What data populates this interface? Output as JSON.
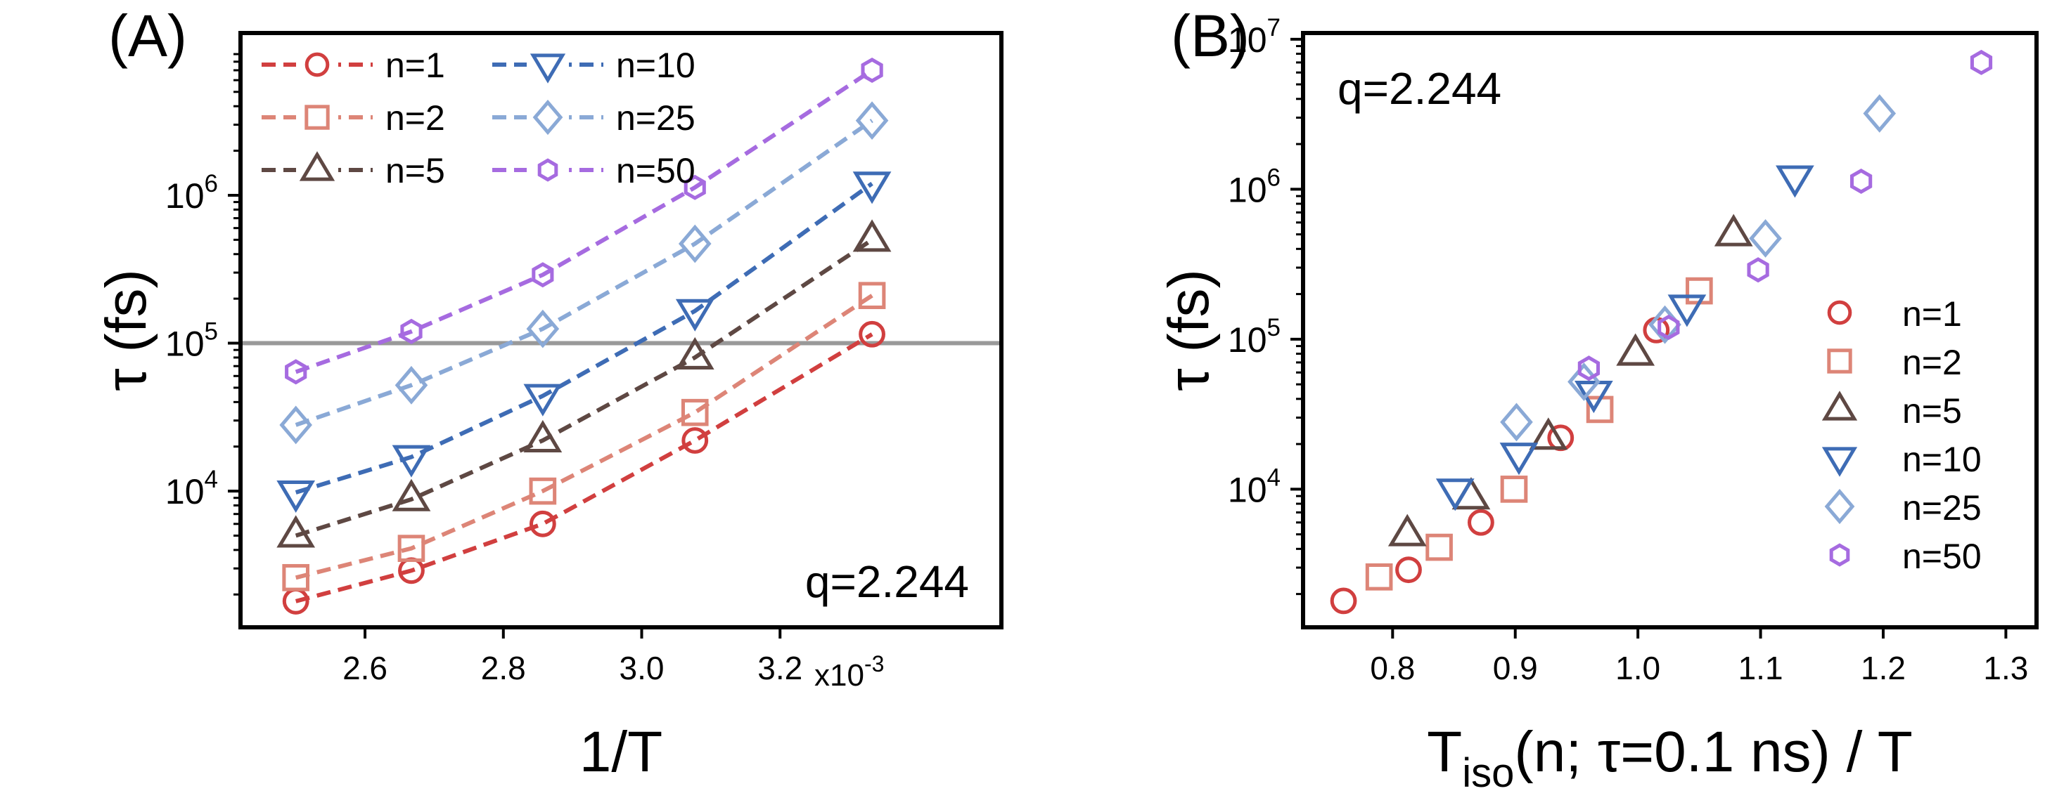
{
  "chart_data": [
    {
      "type": "line",
      "panel_label": "(A)",
      "annotation": "q=2.244",
      "xlabel": "1/T",
      "ylabel": "τ (fs)",
      "x_multiplier": "x10",
      "x_multiplier_exp": "-3",
      "yscale": "log",
      "xlim": [
        2.42,
        3.52
      ],
      "ylim": [
        1200,
        12500000.0
      ],
      "xticks": [
        {
          "value": 2.6,
          "label": "2.6"
        },
        {
          "value": 2.8,
          "label": "2.8"
        },
        {
          "value": 3.0,
          "label": "3.0"
        },
        {
          "value": 3.2,
          "label": "3.2"
        }
      ],
      "yticks": [
        {
          "value": 10000,
          "label": "10",
          "exp": "4"
        },
        {
          "value": 100000,
          "label": "10",
          "exp": "5"
        },
        {
          "value": 1000000,
          "label": "10",
          "exp": "6"
        }
      ],
      "hline": {
        "value": 100000,
        "color": "#999999"
      },
      "legend": {
        "placement": "top-left",
        "columns": 2
      },
      "series": [
        {
          "name": "n=1",
          "marker": "circle",
          "color": "#d13f3f",
          "x": [
            2.5,
            2.667,
            2.857,
            3.077,
            3.333
          ],
          "y": [
            1800,
            2900,
            6000,
            22000,
            115000
          ],
          "fit_y": [
            1800,
            2900,
            6000,
            22000,
            115000
          ]
        },
        {
          "name": "n=2",
          "marker": "square",
          "color": "#dd8577",
          "x": [
            2.5,
            2.667,
            2.857,
            3.077,
            3.333
          ],
          "y": [
            2600,
            4100,
            10000,
            34000,
            210000
          ],
          "fit_y": [
            2600,
            4100,
            10000,
            34000,
            210000
          ]
        },
        {
          "name": "n=5",
          "marker": "triangle-up",
          "color": "#5e4843",
          "x": [
            2.5,
            2.667,
            2.857,
            3.077,
            3.333
          ],
          "y": [
            5000,
            8800,
            22000,
            80000,
            500000
          ],
          "fit_y": [
            5000,
            8800,
            22000,
            80000,
            500000
          ]
        },
        {
          "name": "n=10",
          "marker": "triangle-down",
          "color": "#3e6cb5",
          "x": [
            2.5,
            2.667,
            2.857,
            3.077,
            3.333
          ],
          "y": [
            9800,
            17000,
            44000,
            165000,
            1200000
          ],
          "fit_y": [
            9800,
            17000,
            44000,
            165000,
            1200000
          ]
        },
        {
          "name": "n=25",
          "marker": "diamond",
          "color": "#8aa9d6",
          "x": [
            2.5,
            2.667,
            2.857,
            3.077,
            3.333
          ],
          "y": [
            28000,
            52000,
            125000,
            470000,
            3200000
          ],
          "fit_y": [
            28000,
            52000,
            125000,
            470000,
            3200000
          ]
        },
        {
          "name": "n=50",
          "marker": "hexagon",
          "color": "#a66be0",
          "x": [
            2.5,
            2.667,
            2.857,
            3.077,
            3.333
          ],
          "y": [
            64000,
            120000,
            290000,
            1130000,
            7000000
          ],
          "fit_y": [
            64000,
            120000,
            290000,
            1130000,
            7000000
          ]
        }
      ]
    },
    {
      "type": "scatter",
      "panel_label": "(B)",
      "annotation": "q=2.244",
      "xlabel_main": "T",
      "xlabel_sub": "iso",
      "xlabel_rest": "(n; τ=0.1 ns) / T",
      "ylabel": "τ (fs)",
      "yscale": "log",
      "xlim": [
        0.727,
        1.325
      ],
      "ylim": [
        1200,
        11000000.0
      ],
      "xticks": [
        {
          "value": 0.8,
          "label": "0.8"
        },
        {
          "value": 0.9,
          "label": "0.9"
        },
        {
          "value": 1.0,
          "label": "1.0"
        },
        {
          "value": 1.1,
          "label": "1.1"
        },
        {
          "value": 1.2,
          "label": "1.2"
        },
        {
          "value": 1.3,
          "label": "1.3"
        }
      ],
      "yticks": [
        {
          "value": 10000,
          "label": "10",
          "exp": "4"
        },
        {
          "value": 100000,
          "label": "10",
          "exp": "5"
        },
        {
          "value": 1000000,
          "label": "10",
          "exp": "6"
        },
        {
          "value": 10000000,
          "label": "10",
          "exp": "7"
        }
      ],
      "legend": {
        "placement": "bottom-right",
        "columns": 1
      },
      "series": [
        {
          "name": "n=1",
          "marker": "circle",
          "color": "#d13f3f",
          "x": [
            0.76,
            0.813,
            0.872,
            0.937,
            1.015
          ],
          "y": [
            1800,
            2900,
            6000,
            22000,
            115000
          ]
        },
        {
          "name": "n=2",
          "marker": "square",
          "color": "#dd8577",
          "x": [
            0.789,
            0.838,
            0.899,
            0.969,
            1.05
          ],
          "y": [
            2600,
            4100,
            10000,
            34000,
            210000
          ]
        },
        {
          "name": "n=5",
          "marker": "triangle-up",
          "color": "#5e4843",
          "x": [
            0.812,
            0.864,
            0.927,
            0.998,
            1.078
          ],
          "y": [
            5000,
            8800,
            22000,
            80000,
            500000
          ]
        },
        {
          "name": "n=10",
          "marker": "triangle-down",
          "color": "#3e6cb5",
          "x": [
            0.851,
            0.903,
            0.964,
            1.04,
            1.128
          ],
          "y": [
            9800,
            17000,
            44000,
            165000,
            1200000
          ]
        },
        {
          "name": "n=25",
          "marker": "diamond",
          "color": "#8aa9d6",
          "x": [
            0.901,
            0.956,
            1.022,
            1.104,
            1.197
          ],
          "y": [
            28000,
            52000,
            125000,
            470000,
            3200000
          ]
        },
        {
          "name": "n=50",
          "marker": "hexagon",
          "color": "#a66be0",
          "x": [
            0.96,
            1.025,
            1.098,
            1.182,
            1.28
          ],
          "y": [
            64000,
            120000,
            290000,
            1130000,
            7000000
          ]
        }
      ]
    }
  ]
}
